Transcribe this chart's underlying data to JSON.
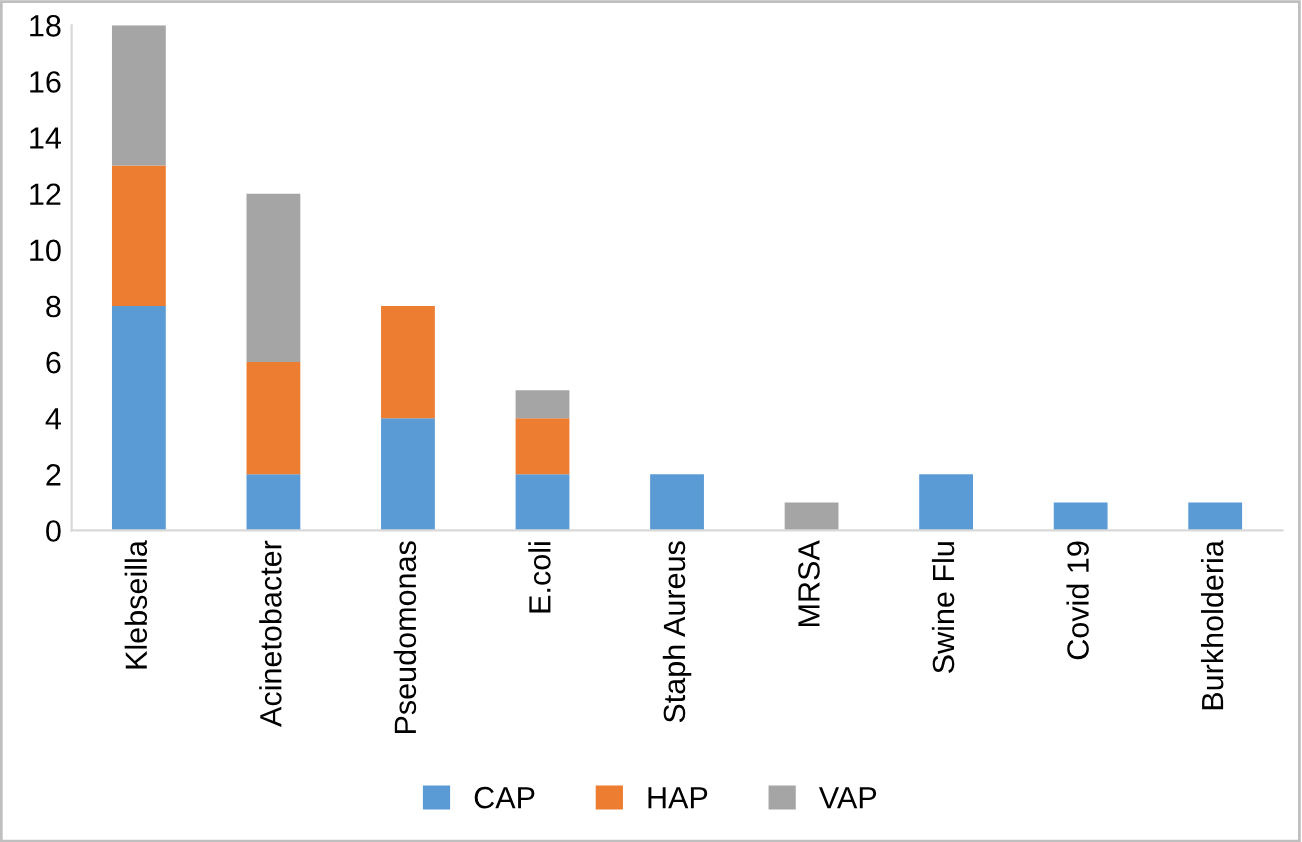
{
  "chart_data": {
    "type": "bar",
    "stacked": true,
    "categories": [
      "Klebseilla",
      "Acinetobacter",
      "Pseudomonas",
      "E.coli",
      "Staph Aureus",
      "MRSA",
      "Swine Flu",
      "Covid 19",
      "Burkholderia"
    ],
    "series": [
      {
        "name": "CAP",
        "color": "#5b9bd5",
        "values": [
          8,
          2,
          4,
          2,
          2,
          0,
          2,
          1,
          1
        ]
      },
      {
        "name": "HAP",
        "color": "#ed7d31",
        "values": [
          5,
          4,
          4,
          2,
          0,
          0,
          0,
          0,
          0
        ]
      },
      {
        "name": "VAP",
        "color": "#a5a5a5",
        "values": [
          5,
          6,
          0,
          1,
          0,
          1,
          0,
          0,
          0
        ]
      }
    ],
    "ylim": [
      0,
      18
    ],
    "yticks": [
      0,
      2,
      4,
      6,
      8,
      10,
      12,
      14,
      16,
      18
    ],
    "grid": false,
    "legend": "bottom"
  }
}
